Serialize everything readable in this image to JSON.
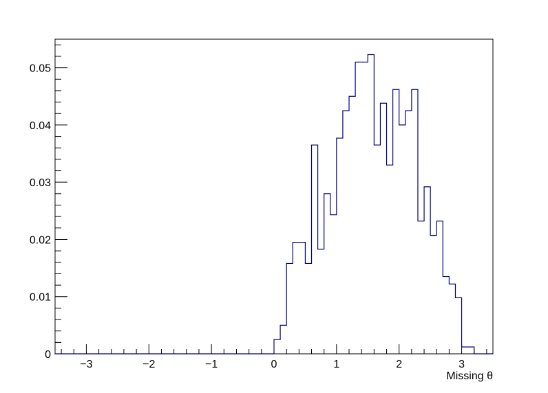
{
  "chart_data": {
    "type": "histogram",
    "xlabel": "Missing θ",
    "ylabel": "",
    "title": "",
    "xlim": [
      -3.5,
      3.5
    ],
    "ylim": [
      0,
      0.055
    ],
    "xticks": [
      -3,
      -2,
      -1,
      0,
      1,
      2,
      3
    ],
    "xtick_labels": [
      "−3",
      "−2",
      "−1",
      "0",
      "1",
      "2",
      "3"
    ],
    "yticks": [
      0,
      0.01,
      0.02,
      0.03,
      0.04,
      0.05
    ],
    "ytick_labels": [
      "0",
      "0.01",
      "0.02",
      "0.03",
      "0.04",
      "0.05"
    ],
    "line_color": "#000080",
    "grid": false,
    "bin_edges": [
      -3.5,
      0.0,
      0.1,
      0.2,
      0.3,
      0.4,
      0.5,
      0.6,
      0.7,
      0.8,
      0.9,
      1.0,
      1.1,
      1.2,
      1.3,
      1.4,
      1.5,
      1.6,
      1.7,
      1.8,
      1.9,
      2.0,
      2.1,
      2.2,
      2.3,
      2.4,
      2.5,
      2.6,
      2.7,
      2.8,
      2.9,
      3.0,
      3.2,
      3.5
    ],
    "values": [
      0,
      0.0025,
      0.005,
      0.0158,
      0.0195,
      0.0195,
      0.0158,
      0.0365,
      0.0183,
      0.028,
      0.0243,
      0.0377,
      0.0425,
      0.045,
      0.051,
      0.051,
      0.0523,
      0.0365,
      0.0438,
      0.033,
      0.0462,
      0.04,
      0.0425,
      0.0462,
      0.0232,
      0.0292,
      0.0207,
      0.0232,
      0.0135,
      0.0122,
      0.0098,
      0.0012,
      0
    ]
  }
}
